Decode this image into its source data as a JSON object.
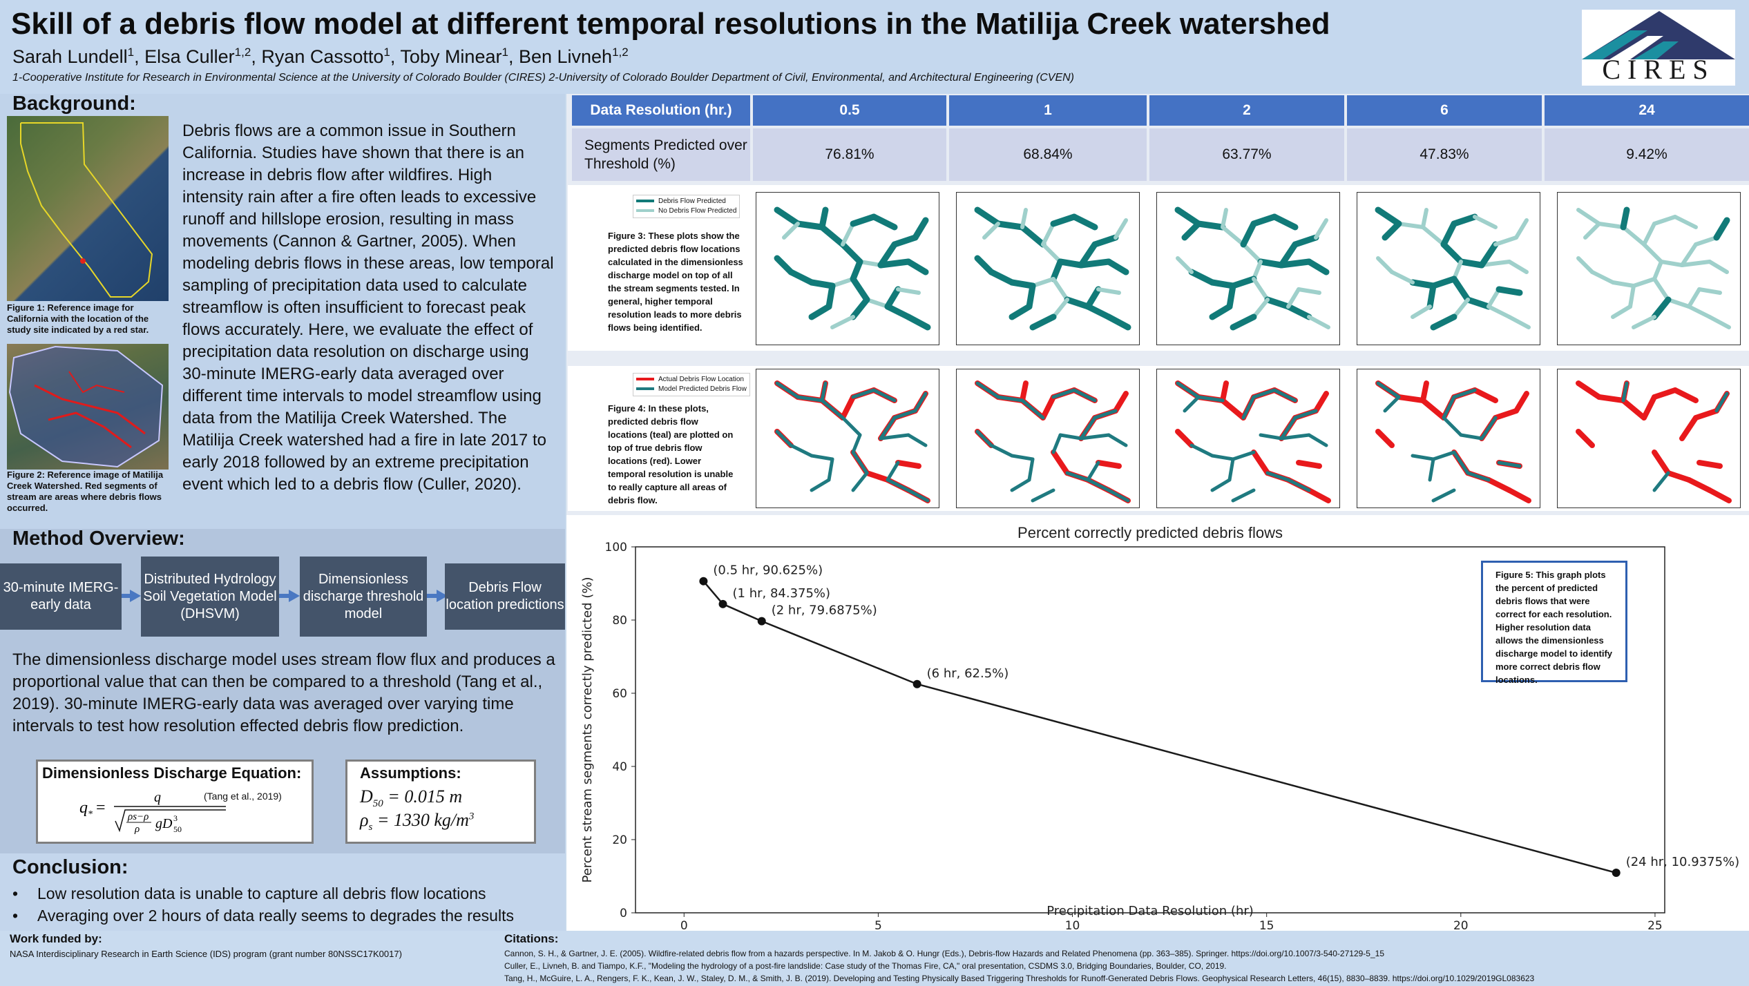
{
  "header": {
    "title": "Skill of a debris flow model at different temporal resolutions in the Matilija Creek watershed",
    "authors": [
      {
        "name": "Sarah Lundell",
        "sup": "1"
      },
      {
        "name": "Elsa Culler",
        "sup": "1,2"
      },
      {
        "name": "Ryan Cassotto",
        "sup": "1"
      },
      {
        "name": "Toby Minear",
        "sup": "1"
      },
      {
        "name": "Ben Livneh",
        "sup": "1,2"
      }
    ],
    "affiliations": "1-Cooperative Institute for Research in Environmental Science at the University of Colorado Boulder (CIRES)  2-University of Colorado Boulder Department of Civil, Environmental, and Architectural Engineering (CVEN)",
    "logo_text": "CIRES",
    "colors": {
      "logo_teal": "#1b8fa0",
      "logo_navy": "#2f3a6b"
    }
  },
  "background": {
    "heading": "Background:",
    "text": "Debris flows are a common issue in Southern California. Studies have shown that there is an increase in debris flow after wildfires. High intensity rain after a fire often leads to excessive runoff and hillslope erosion, resulting in mass movements (Cannon & Gartner, 2005). When modeling debris flows in these areas, low temporal sampling of precipitation data used to calculate streamflow is often insufficient to forecast peak flows accurately. Here, we evaluate the effect of precipitation data resolution on discharge using 30-minute IMERG-early data averaged over different time intervals to model streamflow using data from the Matilija Creek Watershed. The Matilija Creek watershed had a fire in late 2017 to early 2018 followed by an extreme precipitation event which led to a debris flow (Culler, 2020).",
    "fig1_caption": "Figure 1:  Reference image for California with the location of the study site indicated by a red star.",
    "fig2_caption": "Figure 2:  Reference image of Matilija Creek Watershed. Red segments of stream are areas where debris flows occurred."
  },
  "method": {
    "heading": "Method Overview:",
    "steps": [
      "30-minute IMERG-early data",
      "Distributed Hydrology Soil Vegetation Model (DHSVM)",
      "Dimensionless discharge threshold model",
      "Debris Flow location predictions"
    ],
    "text": "The dimensionless discharge model uses stream flow flux and produces a proportional value that can then be compared to a threshold (Tang et al., 2019). 30-minute IMERG-early data was averaged over varying time intervals to test how resolution effected debris flow prediction.",
    "equation_title": "Dimensionless Discharge Equation:",
    "equation_cite": "(Tang et al., 2019)",
    "assumptions_title": "Assumptions:",
    "assumption_1": "D50 = 0.015 m",
    "assumption_2": "ρs = 1330 kg/m3"
  },
  "conclusion": {
    "heading": "Conclusion:",
    "bullets": [
      "Low resolution data is unable to capture all debris flow locations",
      "Averaging over 2 hours of data really seems to degrades the results"
    ]
  },
  "table": {
    "header_label": "Data Resolution (hr.)",
    "resolutions": [
      "0.5",
      "1",
      "2",
      "6",
      "24"
    ],
    "row_label": "Segments Predicted over Threshold (%)",
    "values": [
      "76.81%",
      "68.84%",
      "63.77%",
      "47.83%",
      "9.42%"
    ]
  },
  "figure3": {
    "legend": [
      "Debris Flow Predicted",
      "No Debris Flow Predicted"
    ],
    "caption": "Figure 3: These plots show the predicted debris flow locations calculated in the dimensionless discharge model on top of all the stream segments tested. In general, higher temporal resolution leads to more debris flows being identified.",
    "colors": {
      "predicted": "#117a78",
      "not_predicted": "#9fd0cb"
    },
    "predicted_fraction": [
      0.7681,
      0.6884,
      0.6377,
      0.4783,
      0.0942
    ]
  },
  "figure4": {
    "legend": [
      "Actual Debris Flow Location",
      "Model Predicted Debris Flow"
    ],
    "caption": "Figure 4: In these plots, predicted debris flow locations (teal) are plotted on top of true debris flow locations (red). Lower temporal resolution is unable to really capture all areas of debris flow.",
    "colors": {
      "actual": "#e8191c",
      "predicted": "#1f7a80"
    }
  },
  "figure5": {
    "caption": "Figure 5: This graph plots the percent of predicted debris flows that were correct for each resolution. Higher resolution data allows the dimensionless discharge model to identify more correct debris flow locations."
  },
  "chart_data": {
    "type": "line",
    "title": "Percent correctly predicted debris flows",
    "xlabel": "Precipitation Data Resolution (hr)",
    "ylabel": "Percent stream segments correctly predicted (%)",
    "x": [
      0.5,
      1,
      2,
      6,
      24
    ],
    "y": [
      90.625,
      84.375,
      79.6875,
      62.5,
      10.9375
    ],
    "point_labels": [
      "(0.5 hr, 90.625%)",
      "(1 hr, 84.375%)",
      "(2 hr, 79.6875%)",
      "(6 hr, 62.5%)",
      "(24 hr, 10.9375%)"
    ],
    "xlim": [
      -1.25,
      25.25
    ],
    "ylim": [
      0,
      100
    ],
    "xticks": [
      0,
      5,
      10,
      15,
      20,
      25
    ],
    "yticks": [
      0,
      20,
      40,
      60,
      80,
      100
    ],
    "grid": false,
    "line_color": "#1a1a1a"
  },
  "footer": {
    "funding_title": "Work funded by:",
    "funding_text": "NASA Interdisciplinary Research in Earth Science (IDS) program (grant number 80NSSC17K0017)",
    "citations_title": "Citations:",
    "citations": [
      "Cannon, S. H., & Gartner, J. E. (2005). Wildfire-related debris flow from a hazards perspective. In M. Jakob & O. Hungr (Eds.), Debris-flow Hazards and Related Phenomena (pp. 363–385). Springer. https://doi.org/10.1007/3-540-27129-5_15",
      "Culler, E., Livneh, B. and Tiampo, K.F., \"Modeling the hydrology of a post-fire landslide: Case study of the Thomas Fire, CA,\" oral presentation, CSDMS 3.0, Bridging Boundaries, Boulder, CO, 2019.",
      "Tang, H., McGuire, L. A., Rengers, F. K., Kean, J. W., Staley, D. M., & Smith, J. B. (2019). Developing and Testing Physically Based Triggering Thresholds for Runoff-Generated Debris Flows. Geophysical Research Letters, 46(15), 8830–8839.  https://doi.org/10.1029/2019GL083623"
    ]
  }
}
